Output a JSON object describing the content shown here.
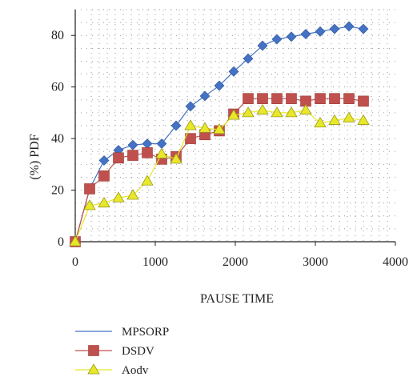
{
  "chart_data": {
    "type": "line",
    "title": "",
    "xlabel": "PAUSE TIME",
    "ylabel": "(%) PDF",
    "xlim": [
      0,
      4000
    ],
    "ylim": [
      0,
      90
    ],
    "xticks": [
      0,
      1000,
      2000,
      3000,
      4000
    ],
    "yticks": [
      0,
      20,
      40,
      60,
      80
    ],
    "x_tick_labels": [
      "0",
      "1000",
      "2000",
      "3000",
      "4000"
    ],
    "y_tick_labels": [
      "0",
      "20",
      "40",
      "60",
      "80"
    ],
    "grid": "dotted",
    "legend_position": "bottom-left",
    "x": [
      0,
      180,
      360,
      540,
      720,
      900,
      1080,
      1260,
      1440,
      1620,
      1800,
      1980,
      2160,
      2340,
      2520,
      2700,
      2880,
      3060,
      3240,
      3420,
      3600
    ],
    "series": [
      {
        "name": "MPSORP",
        "color": "#4472C4",
        "marker": "diamond",
        "values": [
          0,
          20.5,
          31.5,
          35.5,
          37.5,
          38,
          38,
          45,
          52.5,
          56.5,
          60.5,
          66,
          71,
          76,
          78.5,
          79.5,
          80.5,
          81.5,
          82.5,
          83.5,
          82.5
        ]
      },
      {
        "name": "DSDV",
        "color": "#C0504D",
        "marker": "square",
        "values": [
          0,
          20.5,
          25.5,
          32.5,
          33.5,
          34.5,
          32,
          33,
          40,
          41.5,
          43,
          49.5,
          55.5,
          55.5,
          55.5,
          55.5,
          54.5,
          55.5,
          55.5,
          55.5,
          54.5
        ]
      },
      {
        "name": "Aodv",
        "color": "#E8E82A",
        "marker": "triangle",
        "values": [
          0,
          14,
          15,
          17,
          18,
          23.5,
          34,
          32,
          45,
          44,
          43.5,
          49,
          50,
          51,
          50,
          50,
          51,
          46,
          47,
          48,
          47
        ]
      }
    ]
  }
}
